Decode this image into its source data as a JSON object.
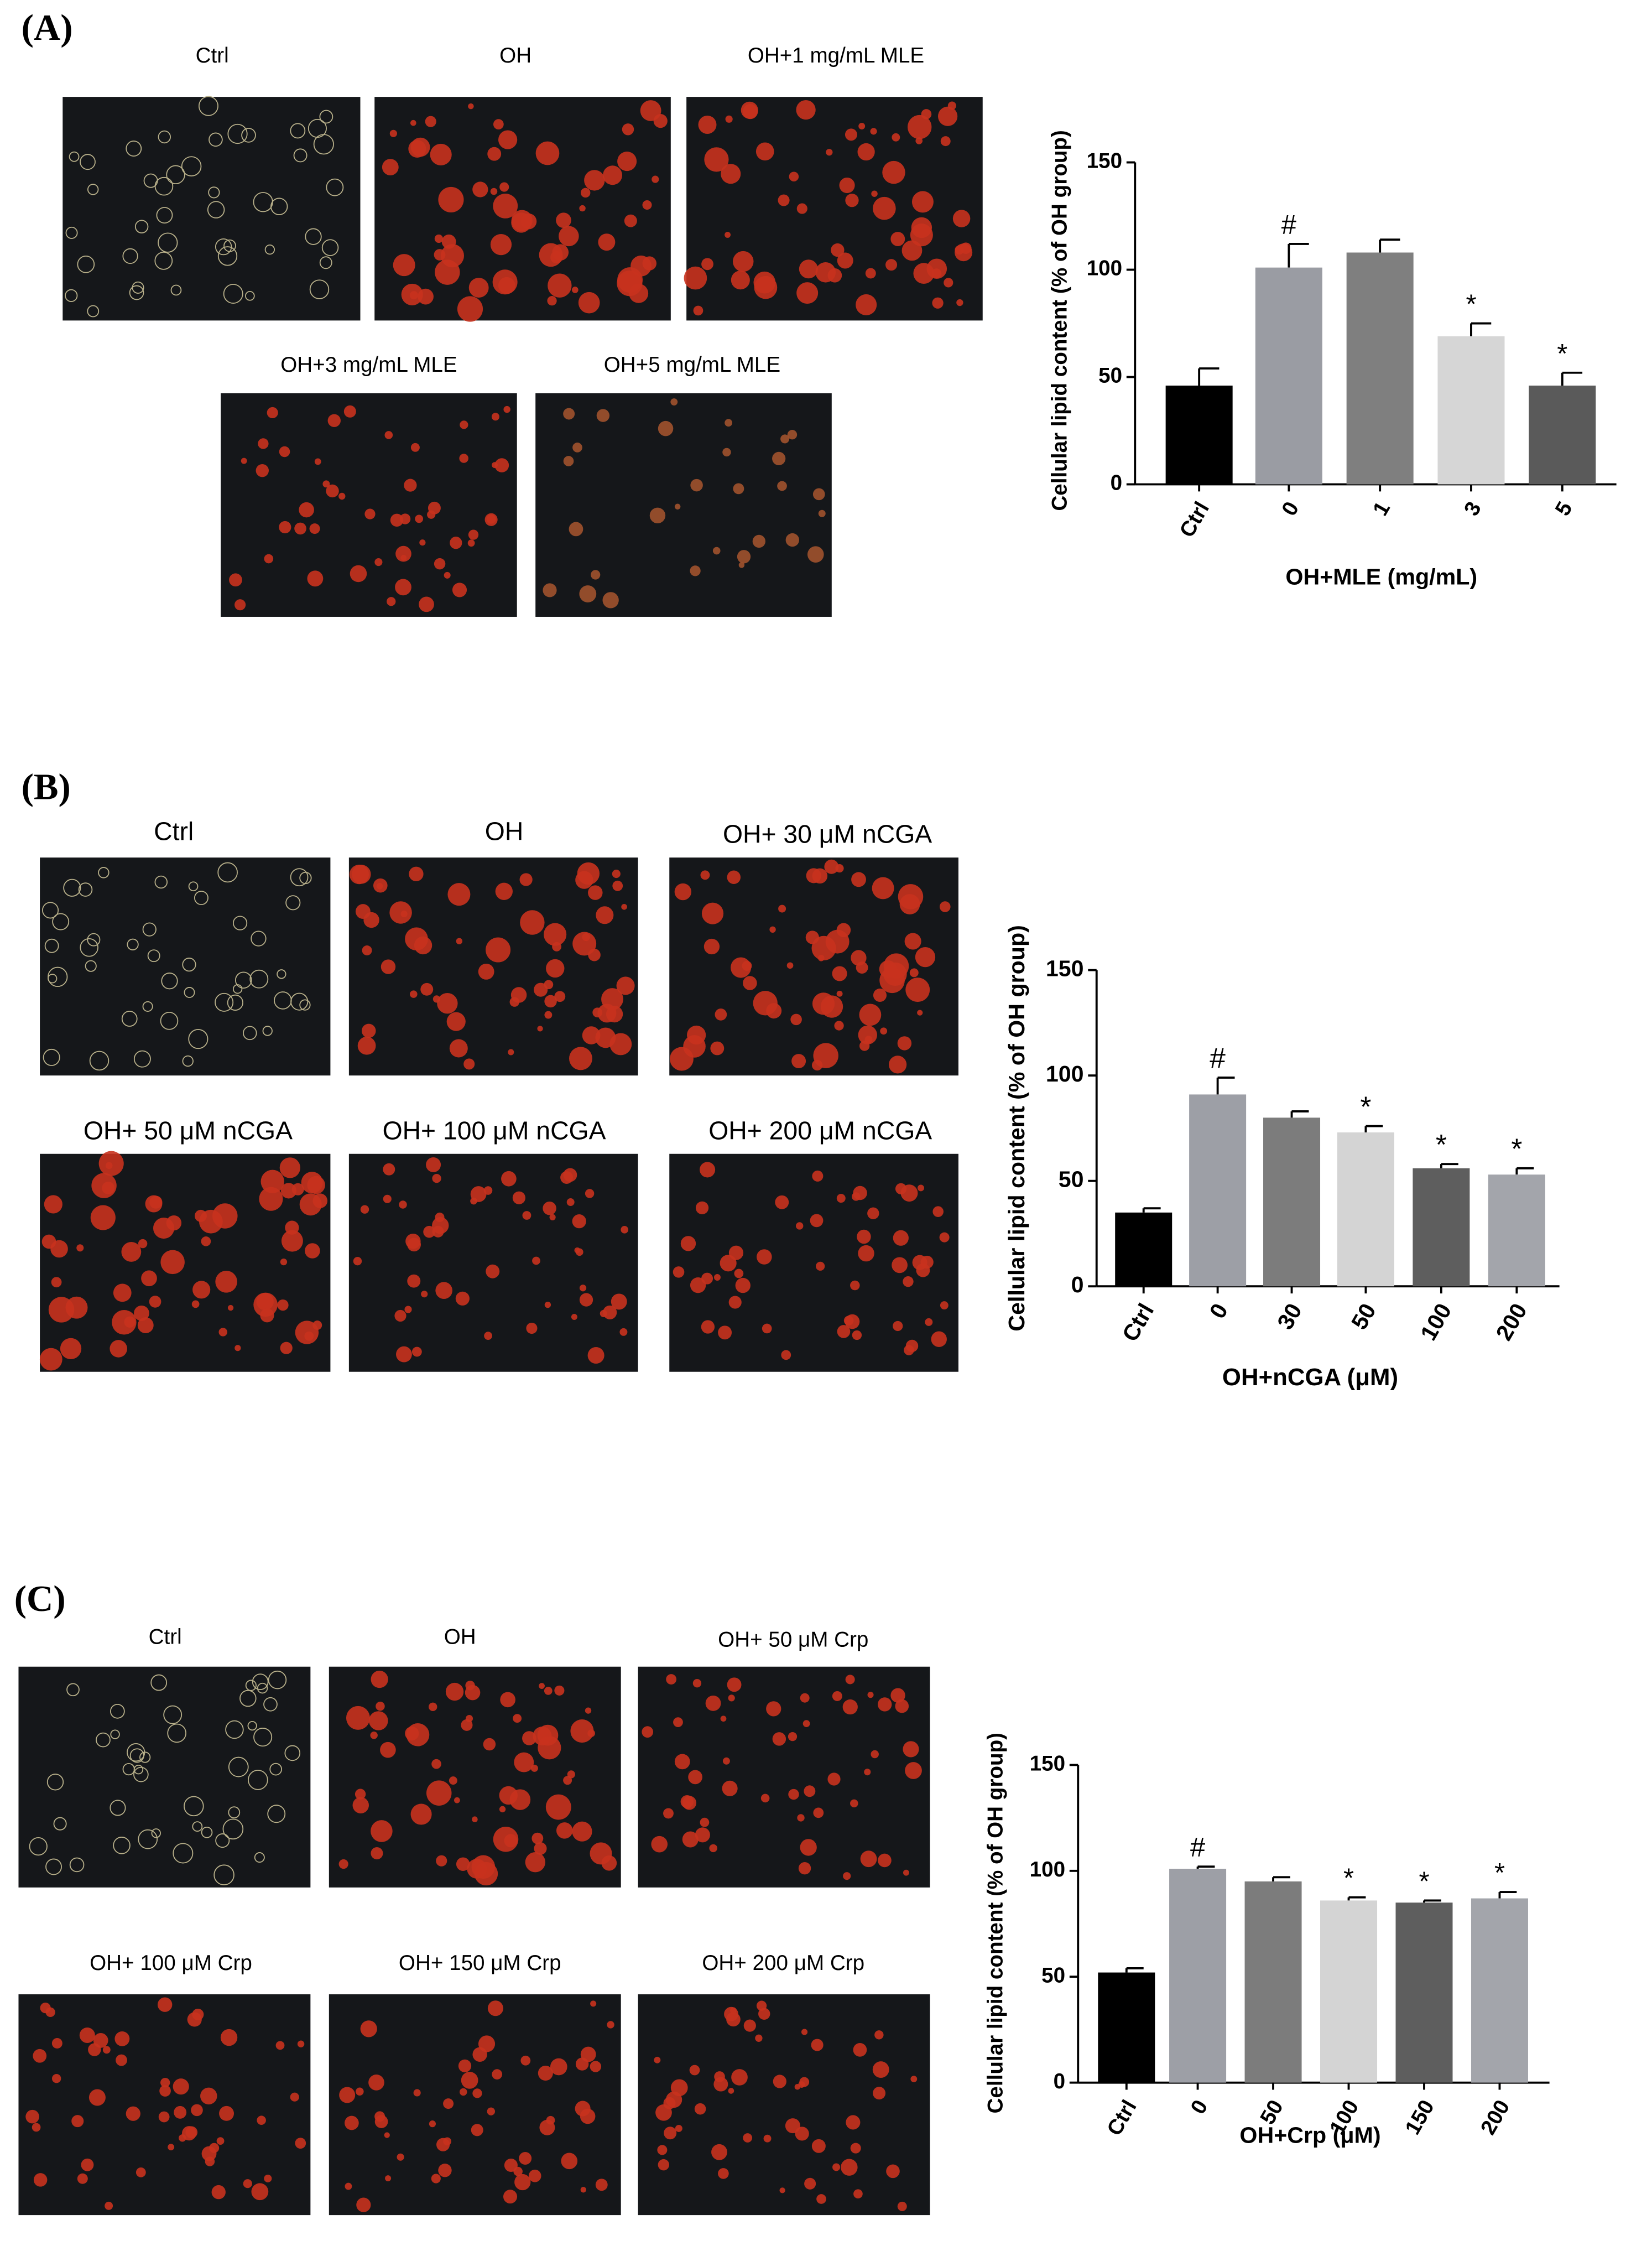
{
  "chart_data": [
    {
      "type": "bar",
      "panel_label": "(A)",
      "image_captions": [
        "Ctrl",
        "OH",
        "OH+1 mg/mL MLE",
        "OH+3 mg/mL MLE",
        "OH+5 mg/mL MLE"
      ],
      "ylabel": "Cellular lipid content (% of OH group)",
      "xlabel": "OH+MLE (mg/mL)",
      "categories": [
        "Ctrl",
        "0",
        "1",
        "3",
        "5"
      ],
      "values": [
        46,
        101,
        108,
        69,
        46
      ],
      "errors": [
        8,
        11,
        6,
        6,
        6
      ],
      "annotations": [
        null,
        "#",
        null,
        "*",
        "*"
      ],
      "colors": [
        "#000000",
        "#9a9ca3",
        "#7f7f7f",
        "#d6d6d6",
        "#5a5a5a"
      ],
      "ylim": [
        0,
        150
      ],
      "yticks": [
        0,
        50,
        100,
        150
      ]
    },
    {
      "type": "bar",
      "panel_label": "(B)",
      "image_captions": [
        "Ctrl",
        "OH",
        "OH+ 30 μM nCGA",
        "OH+ 50 μM nCGA",
        "OH+ 100 μM nCGA",
        "OH+ 200 μM nCGA"
      ],
      "ylabel": "Cellular lipid content (% of OH group)",
      "xlabel": "OH+nCGA (μM)",
      "categories": [
        "Ctrl",
        "0",
        "30",
        "50",
        "100",
        "200"
      ],
      "values": [
        35,
        91,
        80,
        73,
        56,
        53
      ],
      "errors": [
        2,
        8,
        3,
        3,
        2,
        3
      ],
      "annotations": [
        null,
        "#",
        null,
        "*",
        "*",
        "*"
      ],
      "colors": [
        "#000000",
        "#9d9fa6",
        "#7c7c7c",
        "#d4d4d4",
        "#5e5e5e",
        "#a3a5ab"
      ],
      "ylim": [
        0,
        150
      ],
      "yticks": [
        0,
        50,
        100,
        150
      ]
    },
    {
      "type": "bar",
      "panel_label": "(C)",
      "image_captions": [
        "Ctrl",
        "OH",
        "OH+ 50 μM Crp",
        "OH+ 100 μM Crp",
        "OH+ 150 μM Crp",
        "OH+ 200 μM Crp"
      ],
      "ylabel": "Cellular lipid content (% of OH group)",
      "xlabel": "OH+Crp (μM)",
      "categories": [
        "Ctrl",
        "0",
        "50",
        "100",
        "150",
        "200"
      ],
      "values": [
        52,
        101,
        95,
        86,
        85,
        87
      ],
      "errors": [
        2,
        1,
        2,
        1.5,
        1,
        3
      ],
      "annotations": [
        null,
        "#",
        null,
        "*",
        "*",
        "*"
      ],
      "colors": [
        "#000000",
        "#9d9fa6",
        "#7c7c7c",
        "#d4d4d4",
        "#5e5e5e",
        "#a3a5ab"
      ],
      "ylim": [
        0,
        150
      ],
      "yticks": [
        0,
        50,
        100,
        150
      ]
    }
  ]
}
